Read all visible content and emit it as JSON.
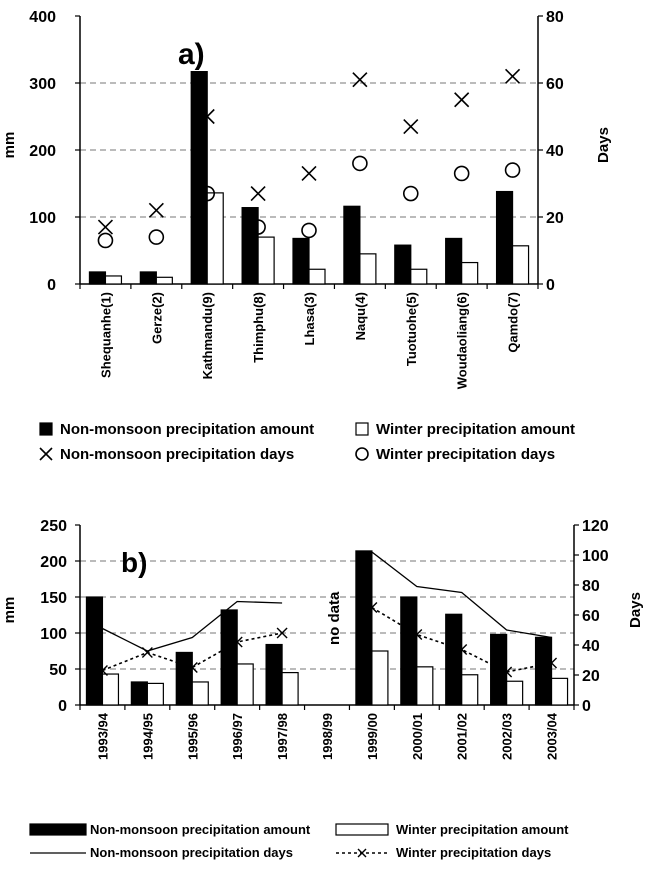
{
  "chart_data": [
    {
      "panel_label": "a)",
      "type": "bar",
      "categories": [
        "Shequanhe(1)",
        "Gerze(2)",
        "Kathmandu(9)",
        "Thimphu(8)",
        "Lhasa(3)",
        "Naqu(4)",
        "Tuotuohe(5)",
        "Woudaoliang(6)",
        "Qamdo(7)"
      ],
      "ylabel": "mm",
      "y2label": "Days",
      "ylim": [
        0,
        400
      ],
      "yticks": [
        0,
        100,
        200,
        300,
        400
      ],
      "y2lim": [
        0,
        80
      ],
      "y2ticks": [
        0,
        20,
        40,
        60,
        80
      ],
      "grid": "horizontal dashed",
      "series": [
        {
          "name": "Non-monsoon precipitation amount",
          "kind": "bar",
          "axis": "left",
          "color": "#000000",
          "values": [
            18,
            18,
            317,
            114,
            68,
            116,
            58,
            68,
            138
          ]
        },
        {
          "name": "Winter precipitation amount",
          "kind": "bar",
          "axis": "left",
          "color": "#ffffff",
          "values": [
            12,
            10,
            136,
            70,
            22,
            45,
            22,
            32,
            57
          ]
        },
        {
          "name": "Non-monsoon precipitation days",
          "kind": "scatter",
          "marker": "x",
          "axis": "right",
          "values": [
            17,
            22,
            50,
            27,
            33,
            61,
            47,
            55,
            62
          ]
        },
        {
          "name": "Winter precipitation days",
          "kind": "scatter",
          "marker": "circle",
          "axis": "right",
          "values": [
            13,
            14,
            27,
            17,
            16,
            36,
            27,
            33,
            34
          ]
        }
      ],
      "legend": {
        "placement": "bottom",
        "items": [
          {
            "label": "Non-monsoon precipitation amount",
            "symbol": "filled-square"
          },
          {
            "label": "Winter precipitation amount",
            "symbol": "open-square"
          },
          {
            "label": "Non-monsoon precipitation days",
            "symbol": "x"
          },
          {
            "label": "Winter precipitation days",
            "symbol": "circle"
          }
        ]
      }
    },
    {
      "panel_label": "b)",
      "type": "bar",
      "categories": [
        "1993/94",
        "1994/95",
        "1995/96",
        "1996/97",
        "1997/98",
        "1998/99",
        "1999/00",
        "2000/01",
        "2001/02",
        "2002/03",
        "2003/04"
      ],
      "ylabel": "mm",
      "y2label": "Days",
      "ylim": [
        0,
        250
      ],
      "yticks": [
        0,
        50,
        100,
        150,
        200,
        250
      ],
      "y2lim": [
        0,
        120
      ],
      "y2ticks": [
        0,
        20,
        40,
        60,
        80,
        100,
        120
      ],
      "grid": "horizontal dashed",
      "annotation": "no data",
      "annotation_category": "1998/99",
      "series": [
        {
          "name": "Non-monsoon precipitation amount",
          "kind": "bar",
          "axis": "left",
          "color": "#000000",
          "values": [
            150,
            32,
            73,
            132,
            84,
            null,
            214,
            150,
            126,
            98,
            94
          ]
        },
        {
          "name": "Winter precipitation amount",
          "kind": "bar",
          "axis": "left",
          "color": "#ffffff",
          "values": [
            43,
            30,
            32,
            57,
            45,
            null,
            75,
            53,
            42,
            33,
            37
          ]
        },
        {
          "name": "Non-monsoon precipitation days",
          "kind": "line",
          "style": "solid",
          "axis": "right",
          "values": [
            51,
            36,
            45,
            69,
            68,
            null,
            102,
            79,
            75,
            50,
            45
          ]
        },
        {
          "name": "Winter precipitation days",
          "kind": "line",
          "style": "dotted",
          "marker": "x",
          "axis": "right",
          "values": [
            23,
            35,
            25,
            42,
            48,
            null,
            65,
            47,
            37,
            22,
            28
          ]
        }
      ],
      "legend": {
        "placement": "bottom",
        "items": [
          {
            "label": "Non-monsoon precipitation amount",
            "symbol": "filled-bar"
          },
          {
            "label": "Winter precipitation amount",
            "symbol": "open-bar"
          },
          {
            "label": "Non-monsoon precipitation days",
            "symbol": "solid-line"
          },
          {
            "label": "Winter precipitation days",
            "symbol": "dotted-line-x"
          }
        ]
      }
    }
  ]
}
